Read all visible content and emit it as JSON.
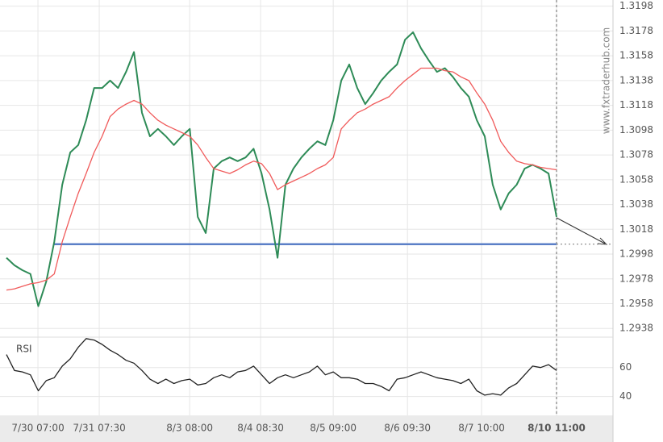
{
  "chart_data": [
    {
      "type": "line",
      "watermark": "www.fxtraderhub.com",
      "xlim": [
        0,
        69
      ],
      "xticks": [
        {
          "value": 3.95,
          "label": "7/30 07:00"
        },
        {
          "value": 11.64,
          "label": "7/31 07:30"
        },
        {
          "value": 22.98,
          "label": "8/3 08:00"
        },
        {
          "value": 31.88,
          "label": "8/4 08:30"
        },
        {
          "value": 40.99,
          "label": "8/5 09:00"
        },
        {
          "value": 50.3,
          "label": "8/6 09:30"
        },
        {
          "value": 59.6,
          "label": "8/7 10:00"
        },
        {
          "value": 69,
          "label": "8/10 11:00"
        }
      ],
      "ylim": [
        1.2931,
        1.3203
      ],
      "yticks": [
        1.2938,
        1.2958,
        1.2978,
        1.2998,
        1.3018,
        1.3038,
        1.3058,
        1.3078,
        1.3098,
        1.3118,
        1.3138,
        1.3158,
        1.3178,
        1.3198
      ],
      "grid": true,
      "support_level": 1.3006,
      "support_color": "#5b7fc7",
      "series": [
        {
          "color": "#2e8b57",
          "values": [
            1.2995,
            1.2989,
            1.2985,
            1.2982,
            1.2956,
            1.2976,
            1.3008,
            1.3054,
            1.308,
            1.3086,
            1.3106,
            1.3132,
            1.3132,
            1.3138,
            1.3132,
            1.3145,
            1.3161,
            1.3112,
            1.3093,
            1.3099,
            1.3093,
            1.3086,
            1.3093,
            1.3099,
            1.3028,
            1.3015,
            1.3067,
            1.3073,
            1.3076,
            1.3073,
            1.3076,
            1.3083,
            1.3063,
            1.3034,
            1.2995,
            1.3054,
            1.3067,
            1.3076,
            1.3083,
            1.3089,
            1.3086,
            1.3106,
            1.3138,
            1.3151,
            1.3132,
            1.3119,
            1.3128,
            1.3138,
            1.3145,
            1.3151,
            1.3171,
            1.3177,
            1.3164,
            1.3154,
            1.3145,
            1.3148,
            1.3141,
            1.3132,
            1.3125,
            1.3106,
            1.3093,
            1.3054,
            1.3034,
            1.3047,
            1.3054,
            1.3067,
            1.307,
            1.3067,
            1.3063,
            1.3028
          ]
        },
        {
          "color": "#f05a5a",
          "values": [
            1.2969,
            1.297,
            1.2972,
            1.2974,
            1.2975,
            1.2977,
            1.2982,
            1.3008,
            1.3028,
            1.3047,
            1.3063,
            1.308,
            1.3093,
            1.3109,
            1.3115,
            1.3119,
            1.3122,
            1.3119,
            1.3112,
            1.3106,
            1.3102,
            1.3099,
            1.3096,
            1.3093,
            1.3086,
            1.3076,
            1.3067,
            1.3065,
            1.3063,
            1.3066,
            1.307,
            1.3073,
            1.3071,
            1.3063,
            1.305,
            1.3054,
            1.3057,
            1.306,
            1.3063,
            1.3067,
            1.307,
            1.3076,
            1.3099,
            1.3106,
            1.3112,
            1.3115,
            1.3119,
            1.3122,
            1.3125,
            1.3132,
            1.3138,
            1.3143,
            1.3148,
            1.3148,
            1.3148,
            1.3146,
            1.3145,
            1.3141,
            1.3138,
            1.3128,
            1.3119,
            1.3106,
            1.3089,
            1.308,
            1.3073,
            1.3071,
            1.307,
            1.3068,
            1.3067,
            1.3066
          ]
        }
      ]
    },
    {
      "type": "line",
      "label": "RSI",
      "xlim": [
        0,
        69
      ],
      "ylim": [
        27,
        81
      ],
      "yticks": [
        40,
        60
      ],
      "series": [
        {
          "color": "#222222",
          "values": [
            69,
            58,
            57,
            55,
            44,
            51,
            53,
            61,
            66,
            74,
            80,
            79,
            76,
            72,
            69,
            65,
            63,
            58,
            52,
            49,
            52,
            49,
            51,
            52,
            48,
            49,
            53,
            55,
            53,
            57,
            58,
            61,
            55,
            49,
            53,
            55,
            53,
            55,
            57,
            61,
            55,
            57,
            53,
            53,
            52,
            49,
            49,
            47,
            44,
            52,
            53,
            55,
            57,
            55,
            53,
            52,
            51,
            49,
            52,
            44,
            41,
            42,
            41,
            46,
            49,
            55,
            61,
            60,
            62,
            58
          ]
        }
      ]
    }
  ]
}
